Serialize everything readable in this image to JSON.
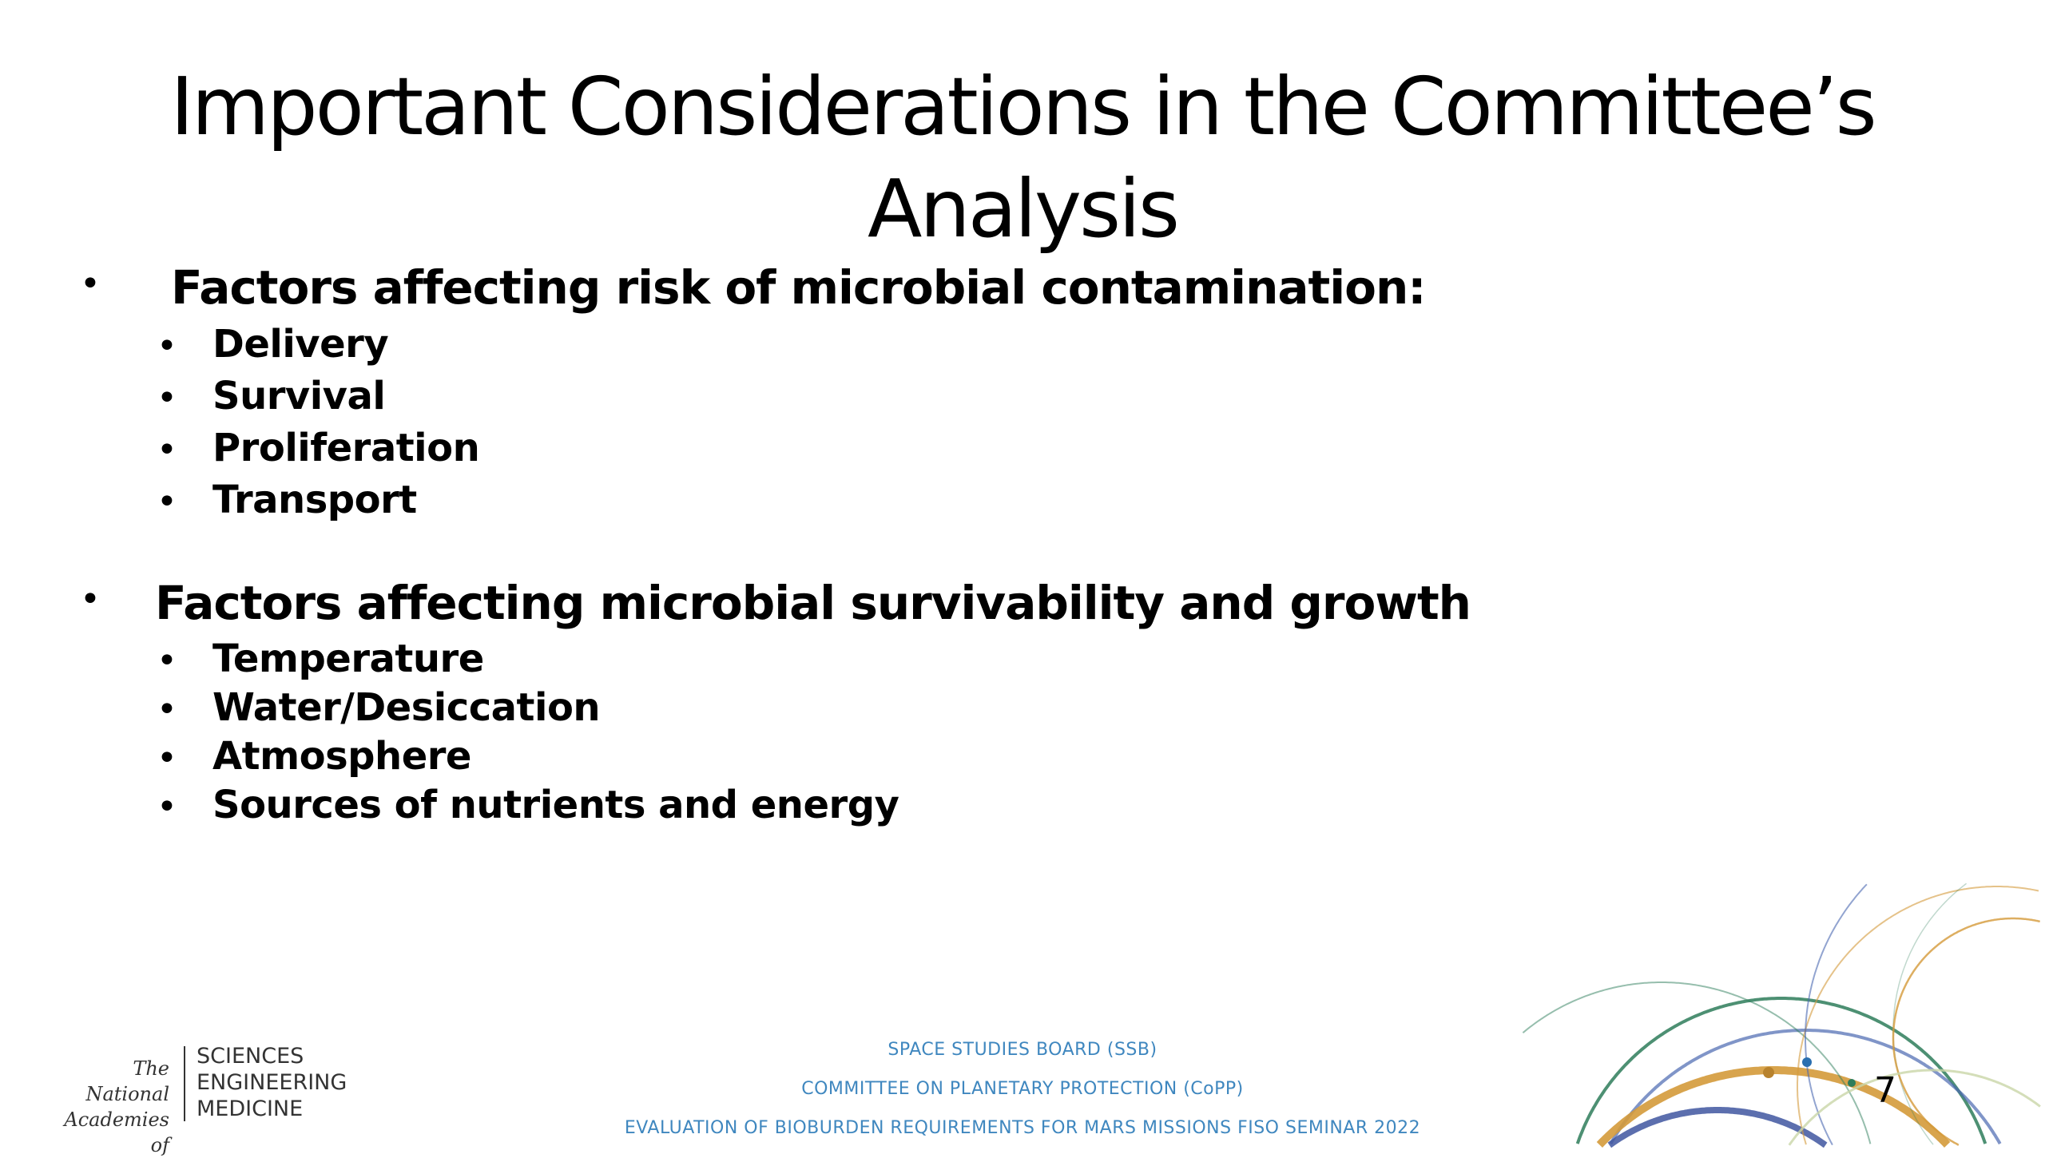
{
  "title": {
    "line1": "Important Considerations in the Committee’s",
    "line2": "Analysis"
  },
  "sections": [
    {
      "heading": "Factors affecting risk of microbial contamination:",
      "items": [
        "Delivery",
        "Survival",
        "Proliferation",
        "Transport"
      ]
    },
    {
      "heading": "Factors affecting microbial survivability and growth",
      "items": [
        "Temperature",
        "Water/Desiccation",
        "Atmosphere",
        "Sources of nutrients and energy"
      ]
    }
  ],
  "bullet_glyph": "•",
  "footer": {
    "line1": "SPACE STUDIES BOARD (SSB)",
    "line2": "COMMITTEE ON PLANETARY PROTECTION (CoPP)",
    "line3": "EVALUATION OF BIOBURDEN REQUIREMENTS FOR MARS MISSIONS FISO SEMINAR 2022",
    "color": "#3f87bf"
  },
  "logo": {
    "left1": "The National",
    "left2": "Academies of",
    "right1": "SCIENCES",
    "right2": "ENGINEERING",
    "right3": "MEDICINE"
  },
  "page_number": "7",
  "decoration_colors": [
    "#2e7d5b",
    "#4a68b0",
    "#d49a3a",
    "#c9d6a8"
  ]
}
